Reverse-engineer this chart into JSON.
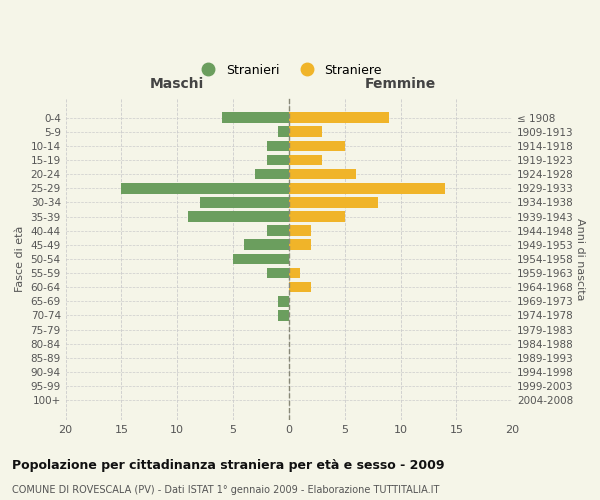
{
  "age_groups": [
    "0-4",
    "5-9",
    "10-14",
    "15-19",
    "20-24",
    "25-29",
    "30-34",
    "35-39",
    "40-44",
    "45-49",
    "50-54",
    "55-59",
    "60-64",
    "65-69",
    "70-74",
    "75-79",
    "80-84",
    "85-89",
    "90-94",
    "95-99",
    "100+"
  ],
  "birth_years": [
    "2004-2008",
    "1999-2003",
    "1994-1998",
    "1989-1993",
    "1984-1988",
    "1979-1983",
    "1974-1978",
    "1969-1973",
    "1964-1968",
    "1959-1963",
    "1954-1958",
    "1949-1953",
    "1944-1948",
    "1939-1943",
    "1934-1938",
    "1929-1933",
    "1924-1928",
    "1919-1923",
    "1914-1918",
    "1909-1913",
    "≤ 1908"
  ],
  "maschi": [
    6,
    1,
    2,
    2,
    3,
    15,
    8,
    9,
    2,
    4,
    5,
    2,
    0,
    1,
    1,
    0,
    0,
    0,
    0,
    0,
    0
  ],
  "femmine": [
    9,
    3,
    5,
    3,
    6,
    14,
    8,
    5,
    2,
    2,
    0,
    1,
    2,
    0,
    0,
    0,
    0,
    0,
    0,
    0,
    0
  ],
  "color_maschi": "#6b9e5e",
  "color_femmine": "#f0b429",
  "title": "Popolazione per cittadinanza straniera per età e sesso - 2009",
  "subtitle": "COMUNE DI ROVESCALA (PV) - Dati ISTAT 1° gennaio 2009 - Elaborazione TUTTITALIA.IT",
  "xlabel_left": "Maschi",
  "xlabel_right": "Femmine",
  "ylabel_left": "Fasce di età",
  "ylabel_right": "Anni di nascita",
  "legend_maschi": "Stranieri",
  "legend_femmine": "Straniere",
  "xlim": 20,
  "background_color": "#f5f5e8",
  "grid_color": "#cccccc"
}
